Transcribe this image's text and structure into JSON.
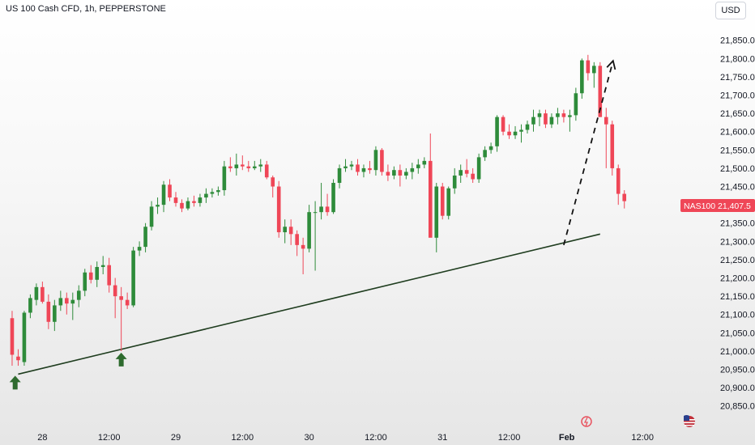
{
  "header": {
    "title": "US 100 Cash CFD, 1h, PEPPERSTONE",
    "currency": "USD"
  },
  "price_label": {
    "symbol": "NAS100",
    "value": "21,407.5"
  },
  "colors": {
    "up": "#2e8b3a",
    "down": "#ef4657",
    "trendline": "#1f3d1f",
    "arrow": "#2e6b2e",
    "price_label_bg": "#ef4657",
    "projection": "#111111",
    "event_icon": "#e8535f"
  },
  "chart_data": {
    "type": "candlestick",
    "title": "US 100 Cash CFD, 1h, PEPPERSTONE",
    "xlabel": "",
    "ylabel": "",
    "ylim": [
      20845,
      21960
    ],
    "y_ticks": [
      20850,
      20900,
      20950,
      21000,
      21050,
      21100,
      21150,
      21200,
      21250,
      21300,
      21350,
      21400,
      21450,
      21500,
      21550,
      21600,
      21650,
      21700,
      21750,
      21800,
      21850
    ],
    "y_tick_labels": [
      "20,850.0",
      "20,900.0",
      "20,950.0",
      "21,000.0",
      "21,050.0",
      "21,100.0",
      "21,150.0",
      "21,200.0",
      "21,250.0",
      "21,300.0",
      "21,350.0",
      "21,400.0",
      "21,450.0",
      "21,500.0",
      "21,550.0",
      "21,600.0",
      "21,650.0",
      "21,700.0",
      "21,750.0",
      "21,800.0",
      "21,850.0"
    ],
    "x_range": [
      -2,
      114
    ],
    "x_ticks": [
      {
        "i": 5,
        "label": "28"
      },
      {
        "i": 16,
        "label": "12:00"
      },
      {
        "i": 27,
        "label": "29"
      },
      {
        "i": 38,
        "label": "12:00"
      },
      {
        "i": 49,
        "label": "30"
      },
      {
        "i": 60,
        "label": "12:00"
      },
      {
        "i": 71,
        "label": "31"
      },
      {
        "i": 82,
        "label": "12:00"
      },
      {
        "i": 91.5,
        "label": "Feb"
      },
      {
        "i": 104,
        "label": "12:00"
      }
    ],
    "candles": [
      [
        21090,
        21110,
        20960,
        20990
      ],
      [
        20985,
        21005,
        20960,
        20975
      ],
      [
        20970,
        21110,
        20960,
        21105
      ],
      [
        21105,
        21155,
        21090,
        21145
      ],
      [
        21140,
        21185,
        21125,
        21175
      ],
      [
        21175,
        21190,
        21130,
        21135
      ],
      [
        21135,
        21155,
        21060,
        21080
      ],
      [
        21080,
        21140,
        21055,
        21125
      ],
      [
        21125,
        21165,
        21110,
        21145
      ],
      [
        21145,
        21160,
        21100,
        21130
      ],
      [
        21130,
        21160,
        21085,
        21140
      ],
      [
        21140,
        21180,
        21120,
        21165
      ],
      [
        21165,
        21225,
        21150,
        21215
      ],
      [
        21215,
        21235,
        21185,
        21195
      ],
      [
        21195,
        21245,
        21175,
        21230
      ],
      [
        21230,
        21260,
        21210,
        21235
      ],
      [
        21235,
        21255,
        21160,
        21180
      ],
      [
        21180,
        21200,
        21090,
        21150
      ],
      [
        21150,
        21175,
        21000,
        21140
      ],
      [
        21140,
        21160,
        21115,
        21125
      ],
      [
        21125,
        21285,
        21120,
        21275
      ],
      [
        21275,
        21300,
        21260,
        21285
      ],
      [
        21285,
        21350,
        21270,
        21340
      ],
      [
        21340,
        21410,
        21330,
        21395
      ],
      [
        21395,
        21420,
        21375,
        21400
      ],
      [
        21400,
        21465,
        21380,
        21455
      ],
      [
        21455,
        21470,
        21410,
        21420
      ],
      [
        21420,
        21435,
        21395,
        21405
      ],
      [
        21405,
        21415,
        21380,
        21390
      ],
      [
        21390,
        21420,
        21385,
        21410
      ],
      [
        21410,
        21425,
        21395,
        21405
      ],
      [
        21405,
        21430,
        21395,
        21420
      ],
      [
        21420,
        21445,
        21405,
        21430
      ],
      [
        21430,
        21445,
        21420,
        21435
      ],
      [
        21435,
        21450,
        21425,
        21440
      ],
      [
        21440,
        21520,
        21425,
        21505
      ],
      [
        21505,
        21530,
        21490,
        21500
      ],
      [
        21500,
        21540,
        21480,
        21510
      ],
      [
        21510,
        21535,
        21495,
        21505
      ],
      [
        21505,
        21520,
        21490,
        21500
      ],
      [
        21500,
        21520,
        21495,
        21505
      ],
      [
        21505,
        21525,
        21490,
        21510
      ],
      [
        21510,
        21520,
        21470,
        21475
      ],
      [
        21475,
        21480,
        21420,
        21450
      ],
      [
        21450,
        21465,
        21310,
        21325
      ],
      [
        21325,
        21360,
        21295,
        21340
      ],
      [
        21340,
        21360,
        21290,
        21320
      ],
      [
        21320,
        21330,
        21260,
        21290
      ],
      [
        21290,
        21310,
        21210,
        21280
      ],
      [
        21280,
        21400,
        21270,
        21380
      ],
      [
        21380,
        21410,
        21220,
        21380
      ],
      [
        21380,
        21460,
        21360,
        21395
      ],
      [
        21395,
        21430,
        21370,
        21380
      ],
      [
        21380,
        21470,
        21375,
        21460
      ],
      [
        21460,
        21510,
        21445,
        21500
      ],
      [
        21500,
        21525,
        21490,
        21505
      ],
      [
        21505,
        21520,
        21495,
        21510
      ],
      [
        21510,
        21525,
        21480,
        21490
      ],
      [
        21490,
        21510,
        21475,
        21500
      ],
      [
        21500,
        21520,
        21485,
        21495
      ],
      [
        21495,
        21560,
        21480,
        21550
      ],
      [
        21550,
        21555,
        21480,
        21490
      ],
      [
        21490,
        21510,
        21465,
        21480
      ],
      [
        21480,
        21505,
        21470,
        21495
      ],
      [
        21495,
        21510,
        21450,
        21480
      ],
      [
        21480,
        21500,
        21470,
        21490
      ],
      [
        21490,
        21515,
        21470,
        21500
      ],
      [
        21500,
        21525,
        21485,
        21510
      ],
      [
        21510,
        21530,
        21500,
        21520
      ],
      [
        21520,
        21595,
        21320,
        21310
      ],
      [
        21310,
        21460,
        21270,
        21450
      ],
      [
        21450,
        21460,
        21360,
        21370
      ],
      [
        21370,
        21450,
        21360,
        21445
      ],
      [
        21445,
        21500,
        21430,
        21480
      ],
      [
        21480,
        21510,
        21460,
        21495
      ],
      [
        21495,
        21525,
        21475,
        21485
      ],
      [
        21485,
        21500,
        21460,
        21470
      ],
      [
        21470,
        21540,
        21460,
        21530
      ],
      [
        21530,
        21560,
        21520,
        21550
      ],
      [
        21550,
        21570,
        21540,
        21560
      ],
      [
        21560,
        21645,
        21545,
        21640
      ],
      [
        21640,
        21645,
        21590,
        21600
      ],
      [
        21600,
        21620,
        21580,
        21590
      ],
      [
        21590,
        21615,
        21580,
        21600
      ],
      [
        21600,
        21620,
        21570,
        21605
      ],
      [
        21605,
        21630,
        21595,
        21620
      ],
      [
        21620,
        21660,
        21600,
        21640
      ],
      [
        21640,
        21660,
        21615,
        21650
      ],
      [
        21650,
        21660,
        21610,
        21620
      ],
      [
        21620,
        21650,
        21610,
        21640
      ],
      [
        21640,
        21665,
        21620,
        21650
      ],
      [
        21650,
        21660,
        21625,
        21640
      ],
      [
        21640,
        21660,
        21600,
        21645
      ],
      [
        21645,
        21720,
        21630,
        21705
      ],
      [
        21705,
        21800,
        21690,
        21795
      ],
      [
        21795,
        21810,
        21740,
        21760
      ],
      [
        21760,
        21790,
        21720,
        21780
      ],
      [
        21780,
        21790,
        21640,
        21640
      ],
      [
        21640,
        21665,
        21500,
        21620
      ],
      [
        21620,
        21630,
        21480,
        21500
      ],
      [
        21500,
        21510,
        21400,
        21430
      ],
      [
        21430,
        21440,
        21390,
        21410
      ]
    ],
    "trendline": {
      "from": {
        "i": 1,
        "y": 20937
      },
      "to": {
        "i": 97,
        "y": 21320
      }
    },
    "projection": [
      {
        "i": 91,
        "y": 21290
      },
      {
        "i": 99,
        "y": 21785
      }
    ],
    "markers": [
      {
        "type": "up-arrow",
        "i": 0.5,
        "y": 20937
      },
      {
        "type": "up-arrow",
        "i": 18,
        "y": 21000
      }
    ]
  }
}
